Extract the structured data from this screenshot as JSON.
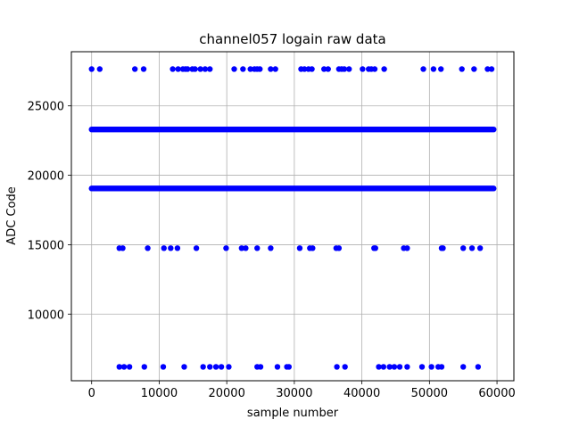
{
  "chart_data": {
    "type": "scatter",
    "title": "channel057 logain raw data",
    "xlabel": "sample number",
    "ylabel": "ADC Code",
    "xlim": [
      -3000,
      62500
    ],
    "ylim": [
      5200,
      28900
    ],
    "xticks": [
      0,
      10000,
      20000,
      30000,
      40000,
      50000,
      60000
    ],
    "yticks": [
      10000,
      15000,
      20000,
      25000
    ],
    "grid": true,
    "marker_color": "#0000ff",
    "series": [
      {
        "bands": [
          {
            "y": 23300,
            "x_range": [
              0,
              59500
            ],
            "continuous": true
          },
          {
            "y": 19050,
            "x_range": [
              0,
              59500
            ],
            "continuous": true
          }
        ],
        "points": [
          {
            "y": 27650,
            "x": [
              0,
              1200,
              6400,
              7700,
              12000,
              12800,
              13500,
              13900,
              14200,
              14900,
              15300,
              16100,
              16800,
              17500,
              21100,
              22400,
              23500,
              24100,
              24500,
              24900,
              26500,
              27200,
              31000,
              31500,
              32100,
              32600,
              34400,
              35000,
              36600,
              37000,
              37400,
              38100,
              40100,
              41000,
              41400,
              41900,
              43300,
              49100,
              50600,
              51700,
              54800,
              56600,
              58600,
              59200
            ]
          },
          {
            "y": 14750,
            "x": [
              4100,
              4600,
              8300,
              10700,
              11700,
              12700,
              15500,
              19900,
              22200,
              22800,
              24500,
              26500,
              30800,
              32300,
              32700,
              36200,
              36600,
              41800,
              42000,
              46200,
              46700,
              51800,
              52000,
              55000,
              56300,
              57500
            ]
          },
          {
            "y": 6200,
            "x": [
              4100,
              4800,
              5600,
              7800,
              10600,
              13700,
              16500,
              17500,
              18400,
              19200,
              20300,
              24500,
              25000,
              27500,
              28900,
              29200,
              36300,
              37500,
              42500,
              43200,
              44100,
              44800,
              45600,
              46700,
              48900,
              50300,
              51300,
              51800,
              55000,
              57200
            ]
          }
        ]
      }
    ]
  }
}
